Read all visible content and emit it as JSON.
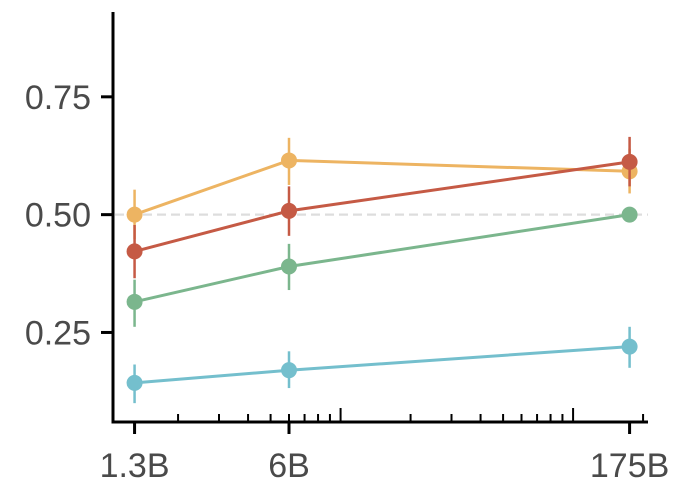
{
  "chart_data": {
    "type": "line",
    "x_scale": "log",
    "categories": [
      "1.3B",
      "6B",
      "175B"
    ],
    "x": [
      1.3,
      6,
      175
    ],
    "xlim": [
      1.05,
      210
    ],
    "ylim": [
      0.06,
      0.93
    ],
    "yticks": [
      0.25,
      0.5,
      0.75
    ],
    "ytick_labels": [
      "0.25",
      "0.50",
      "0.75"
    ],
    "reference_line": {
      "y": 0.5,
      "style": "dashed",
      "color": "#dddddd"
    },
    "grid": false,
    "legend": "none",
    "title": "",
    "xlabel": "",
    "ylabel": "",
    "series": [
      {
        "color": "#EDB462",
        "values": [
          0.5,
          0.615,
          0.592
        ],
        "err_low": [
          0.448,
          0.563,
          0.545
        ],
        "err_high": [
          0.553,
          0.663,
          0.64
        ]
      },
      {
        "color": "#C55A45",
        "values": [
          0.422,
          0.508,
          0.612
        ],
        "err_low": [
          0.365,
          0.455,
          0.56
        ],
        "err_high": [
          0.478,
          0.56,
          0.665
        ]
      },
      {
        "color": "#7BB68D",
        "values": [
          0.315,
          0.39,
          0.5
        ],
        "err_low": [
          0.262,
          0.34,
          0.5
        ],
        "err_high": [
          0.362,
          0.438,
          0.5
        ]
      },
      {
        "color": "#74BFCD",
        "values": [
          0.143,
          0.17,
          0.22
        ],
        "err_low": [
          0.1,
          0.132,
          0.175
        ],
        "err_high": [
          0.182,
          0.21,
          0.262
        ]
      }
    ]
  }
}
